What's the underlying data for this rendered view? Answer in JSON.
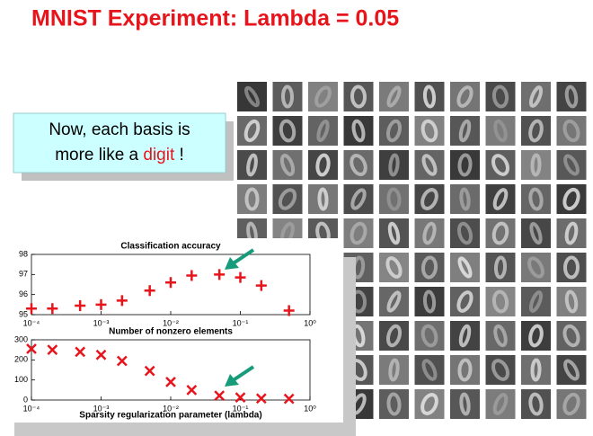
{
  "slide_title": "MNIST Experiment: Lambda = 0.05",
  "callout": {
    "text_before": "Now, each basis is",
    "text_middle": "more like a",
    "highlight": "digit",
    "text_after": "!"
  },
  "chart_data": [
    {
      "type": "scatter",
      "title": "Classification accuracy",
      "marker": "+",
      "color": "#e8141b",
      "log_x": true,
      "x": [
        0.0001,
        0.0002,
        0.0005,
        0.001,
        0.002,
        0.005,
        0.01,
        0.02,
        0.05,
        0.1,
        0.2,
        0.5
      ],
      "values": [
        95.3,
        95.3,
        95.45,
        95.5,
        95.7,
        96.2,
        96.6,
        96.95,
        97.0,
        96.85,
        96.45,
        95.2
      ],
      "xlim": [
        0.0001,
        1
      ],
      "xticks": [
        {
          "value": 0.0001,
          "label": "10⁻⁴"
        },
        {
          "value": 0.001,
          "label": "10⁻³"
        },
        {
          "value": 0.01,
          "label": "10⁻²"
        },
        {
          "value": 0.1,
          "label": "10⁻¹"
        },
        {
          "value": 1,
          "label": "10⁰"
        }
      ],
      "ylim": [
        95,
        98
      ],
      "yticks": [
        95,
        96,
        97,
        98
      ]
    },
    {
      "type": "scatter",
      "title": "Number of nonzero elements",
      "x_label": "Sparsity regularization parameter (lambda)",
      "marker": "x",
      "color": "#e8141b",
      "log_x": true,
      "x": [
        0.0001,
        0.0002,
        0.0005,
        0.001,
        0.002,
        0.005,
        0.01,
        0.02,
        0.05,
        0.1,
        0.2,
        0.5
      ],
      "values": [
        255,
        250,
        240,
        225,
        195,
        145,
        90,
        50,
        22,
        13,
        8,
        6
      ],
      "xlim": [
        0.0001,
        1
      ],
      "xticks": [
        {
          "value": 0.0001,
          "label": "10⁻⁴"
        },
        {
          "value": 0.001,
          "label": "10⁻³"
        },
        {
          "value": 0.01,
          "label": "10⁻²"
        },
        {
          "value": 0.1,
          "label": "10⁻¹"
        },
        {
          "value": 1,
          "label": "10⁰"
        }
      ],
      "ylim": [
        0,
        300
      ],
      "yticks": [
        0,
        100,
        200,
        300
      ]
    }
  ]
}
